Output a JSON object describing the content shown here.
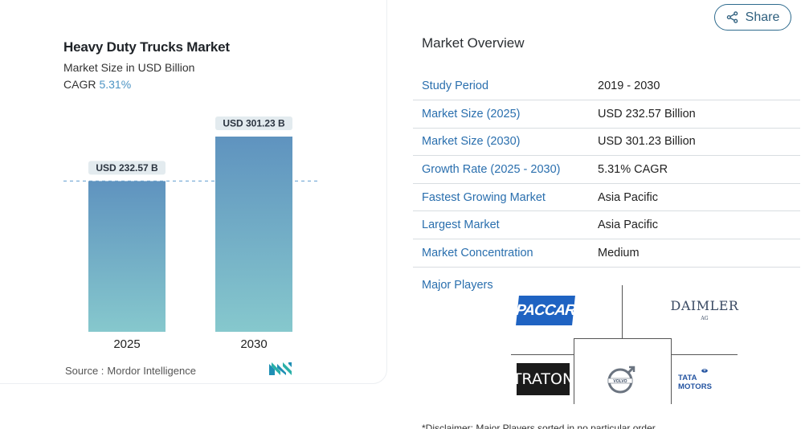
{
  "chart_card": {
    "title": "Heavy Duty Trucks Market",
    "subtitle": "Market Size in USD Billion",
    "cagr_label": "CAGR",
    "cagr_value": "5.31%",
    "source_label": "Source :",
    "source_name": "Mordor Intelligence",
    "logo_icon": "mordor-intelligence-logo"
  },
  "chart_data": {
    "type": "bar",
    "categories": [
      "2025",
      "2030"
    ],
    "values": [
      232.57,
      301.23
    ],
    "value_labels": [
      "USD 232.57 B",
      "USD 301.23 B"
    ],
    "title": "Heavy Duty Trucks Market",
    "subtitle": "Market Size in USD Billion",
    "ylabel": "",
    "ylim": [
      0,
      301.23
    ],
    "grid": false,
    "reference_line": "dashed at 2025 value",
    "colors": {
      "bar_top": "#5f93bf",
      "bar_bottom": "#86c8cd",
      "label_bg": "#e3ebef",
      "dash": "#7fb0d8"
    }
  },
  "share": {
    "label": "Share",
    "icon": "share-icon"
  },
  "overview": {
    "title": "Market Overview",
    "rows": [
      {
        "key": "Study Period",
        "value": "2019 - 2030"
      },
      {
        "key": "Market Size (2025)",
        "value": "USD 232.57 Billion"
      },
      {
        "key": "Market Size (2030)",
        "value": "USD 301.23 Billion"
      },
      {
        "key": "Growth Rate (2025 - 2030)",
        "value": "5.31% CAGR"
      },
      {
        "key": "Fastest Growing Market",
        "value": "Asia Pacific"
      },
      {
        "key": "Largest Market",
        "value": "Asia Pacific"
      },
      {
        "key": "Market Concentration",
        "value": "Medium"
      }
    ]
  },
  "major_players": {
    "label": "Major Players",
    "logos": {
      "paccar": "PACCAR",
      "daimler": "DAIMLER",
      "daimler_sub": "AG",
      "traton": "TRATON",
      "volvo": "VOLVO",
      "tata": "TATA MOTORS"
    }
  },
  "disclaimer": "*Disclaimer: Major Players sorted in no particular order"
}
